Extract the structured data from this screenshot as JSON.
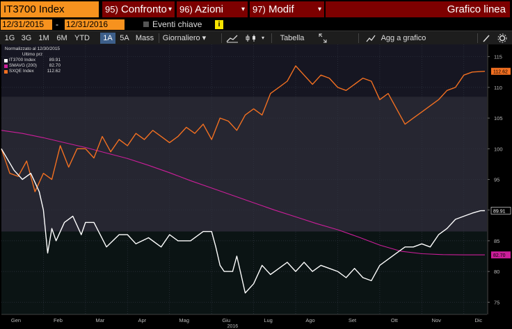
{
  "topbar": {
    "ticker": "IT3700 Index",
    "menus": [
      {
        "num": "95)",
        "label": "Confronto",
        "caret": "▾"
      },
      {
        "num": "96)",
        "label": "Azioni",
        "caret": "▾"
      },
      {
        "num": "97)",
        "label": "Modif",
        "caret": "▾"
      },
      {
        "label": "Grafico linea"
      }
    ]
  },
  "daterow": {
    "start": "12/31/2015",
    "dash": "-",
    "end": "12/31/2016",
    "events": "Eventi chiave",
    "info": "i"
  },
  "toolbar": {
    "periods": [
      "1G",
      "3G",
      "1M",
      "6M",
      "YTD",
      "1A",
      "5A",
      "Mass"
    ],
    "active_period": "1A",
    "frequency": "Giornaliero",
    "frequency_caret": "▾",
    "table": "Tabella",
    "add_chart": "Agg a grafico"
  },
  "legend": {
    "title": "Normalizzato al 12/30/2015",
    "subtitle": "Ultimo prz"
  },
  "colors": {
    "IT3700 Index": "#ffffff",
    "SMAVG (200)": "#cc1e9a",
    "SXQE Index": "#f37021",
    "accent": "#f7921e",
    "menu": "#7d0000"
  },
  "chart_data": {
    "type": "line",
    "x_axis": {
      "labels": [
        "Gen",
        "Feb",
        "Mar",
        "Apr",
        "Mag",
        "Giu",
        "Lug",
        "Ago",
        "Set",
        "Ott",
        "Nov",
        "Dic"
      ],
      "year_label": "2016"
    },
    "y_axis": {
      "ylim": [
        73,
        117
      ],
      "ticks": [
        75,
        80,
        85,
        90,
        95,
        100,
        105,
        110,
        115
      ],
      "position": "right"
    },
    "legend_position": "top-left",
    "series": [
      {
        "name": "IT3700 Index",
        "last": "89.91",
        "color": "#ffffff",
        "x": [
          0,
          0.3,
          0.5,
          0.7,
          0.9,
          1.0,
          1.1,
          1.2,
          1.3,
          1.5,
          1.7,
          1.9,
          2.0,
          2.2,
          2.5,
          2.8,
          3.0,
          3.2,
          3.5,
          3.8,
          4.0,
          4.2,
          4.5,
          4.8,
          5.0,
          5.1,
          5.2,
          5.3,
          5.5,
          5.6,
          5.7,
          5.8,
          6.0,
          6.2,
          6.4,
          6.6,
          6.8,
          7.0,
          7.2,
          7.4,
          7.6,
          7.8,
          8.0,
          8.2,
          8.4,
          8.6,
          8.8,
          9.0,
          9.2,
          9.4,
          9.6,
          9.8,
          10.0,
          10.2,
          10.4,
          10.6,
          10.8,
          11.0,
          11.2,
          11.4,
          11.5
        ],
        "values": [
          100,
          96.5,
          95,
          96,
          93,
          90,
          83,
          87,
          85,
          88,
          89,
          86,
          88,
          88,
          84,
          86,
          86,
          84.5,
          85.5,
          84,
          86,
          85,
          85,
          86.5,
          86.5,
          84,
          81,
          80,
          80,
          82.5,
          79.5,
          76.5,
          78,
          81,
          79.5,
          80.5,
          81.5,
          80,
          81.5,
          80,
          81,
          80.5,
          80,
          79,
          80.5,
          79,
          78.5,
          81,
          82,
          83,
          84,
          84,
          84.5,
          84,
          86,
          87,
          88.5,
          89,
          89.5,
          89.9,
          89.91
        ]
      },
      {
        "name": "SMAVG (200)",
        "last": "82.70",
        "color": "#cc1e9a",
        "x": [
          0,
          0.5,
          1.0,
          1.5,
          2.0,
          2.5,
          3.0,
          3.5,
          4.0,
          4.5,
          5.0,
          5.5,
          6.0,
          6.5,
          7.0,
          7.5,
          8.0,
          8.5,
          9.0,
          9.5,
          10.0,
          10.5,
          11.0,
          11.5
        ],
        "values": [
          103,
          102.5,
          101.8,
          101.0,
          100.2,
          99.3,
          98.4,
          97.3,
          96.1,
          94.8,
          93.6,
          92.4,
          91.2,
          90.0,
          88.9,
          87.8,
          86.8,
          85.6,
          84.3,
          83.3,
          82.9,
          82.75,
          82.7,
          82.7
        ]
      },
      {
        "name": "SXQE Index",
        "last": "112.62",
        "color": "#f37021",
        "x": [
          0,
          0.2,
          0.4,
          0.6,
          0.8,
          1.0,
          1.2,
          1.4,
          1.6,
          1.8,
          2.0,
          2.2,
          2.4,
          2.6,
          2.8,
          3.0,
          3.2,
          3.4,
          3.6,
          3.8,
          4.0,
          4.2,
          4.4,
          4.6,
          4.8,
          5.0,
          5.2,
          5.4,
          5.6,
          5.8,
          6.0,
          6.2,
          6.4,
          6.6,
          6.8,
          7.0,
          7.2,
          7.4,
          7.6,
          7.8,
          8.0,
          8.2,
          8.4,
          8.6,
          8.8,
          9.0,
          9.2,
          9.4,
          9.6,
          9.8,
          10.0,
          10.2,
          10.4,
          10.6,
          10.8,
          11.0,
          11.2,
          11.5
        ],
        "values": [
          100,
          96,
          95.5,
          98,
          93,
          96,
          95,
          100.5,
          97,
          100,
          100,
          98.5,
          102,
          99.5,
          101.5,
          100.5,
          102.5,
          101.5,
          103,
          102,
          101,
          102,
          103.5,
          102.5,
          104,
          101.5,
          105,
          104.5,
          103,
          105.5,
          106.5,
          105.5,
          109,
          110,
          111,
          113.5,
          112,
          110.5,
          112,
          111.5,
          110,
          109.5,
          110.5,
          111.5,
          111,
          108,
          109,
          106.5,
          104,
          105,
          106,
          107,
          108,
          109.5,
          110,
          112,
          112.5,
          112.62
        ]
      }
    ]
  }
}
